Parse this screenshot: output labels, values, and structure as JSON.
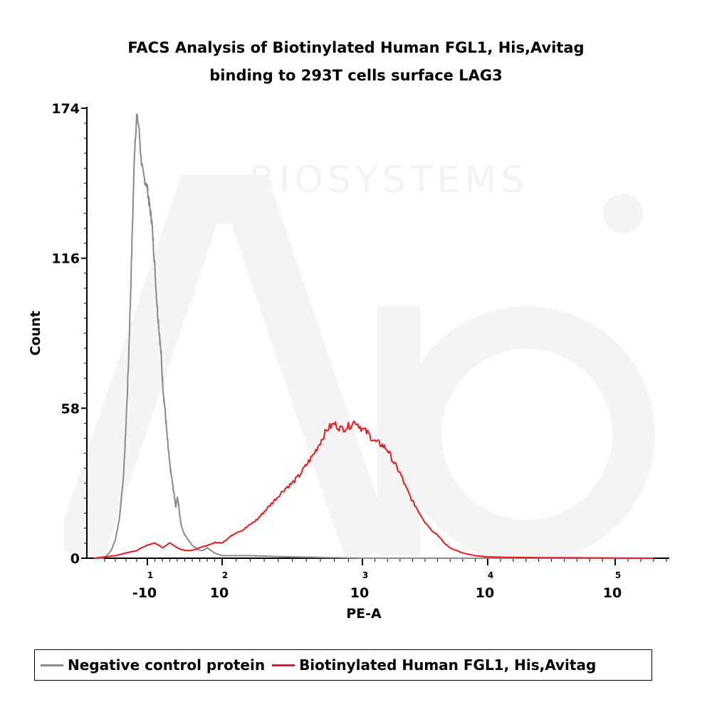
{
  "colors": {
    "negative": "#8a8a8a",
    "positive": "#e8181c",
    "axis": "#000000",
    "watermark": "#f4f4f4"
  },
  "chart_data": {
    "type": "line",
    "title_line1": "FACS Analysis of Biotinylated Human FGL1, His,Avitag",
    "title_line2": "binding to 293T cells surface LAG3",
    "xlabel": "PE-A",
    "ylabel": "Count",
    "ylim": [
      0,
      174
    ],
    "y_ticks": [
      {
        "value": 0,
        "label": "0"
      },
      {
        "value": 58,
        "label": "58"
      },
      {
        "value": 116,
        "label": "116"
      },
      {
        "value": 174,
        "label": "174"
      }
    ],
    "x_ticks": [
      {
        "base": "-10",
        "exp": "1"
      },
      {
        "base": "10",
        "exp": "2"
      },
      {
        "base": "10",
        "exp": "3"
      },
      {
        "base": "10",
        "exp": "4"
      },
      {
        "base": "10",
        "exp": "5"
      }
    ],
    "x_scale": "biexponential (logicle)",
    "grid": false,
    "legend_position": "bottom",
    "series": [
      {
        "name": "Negative control protein",
        "color": "#8a8a8a",
        "points": [
          [
            0.5,
            0
          ],
          [
            0.58,
            0
          ],
          [
            0.62,
            1
          ],
          [
            0.66,
            3
          ],
          [
            0.7,
            7
          ],
          [
            0.74,
            16
          ],
          [
            0.78,
            34
          ],
          [
            0.8,
            52
          ],
          [
            0.82,
            72
          ],
          [
            0.84,
            98
          ],
          [
            0.86,
            128
          ],
          [
            0.88,
            158
          ],
          [
            0.9,
            171
          ],
          [
            0.92,
            167
          ],
          [
            0.94,
            155
          ],
          [
            0.96,
            148
          ],
          [
            0.98,
            146
          ],
          [
            1.0,
            143
          ],
          [
            1.02,
            138
          ],
          [
            1.04,
            134
          ],
          [
            1.06,
            130
          ],
          [
            1.08,
            121
          ],
          [
            1.1,
            112
          ],
          [
            1.12,
            102
          ],
          [
            1.14,
            94
          ],
          [
            1.16,
            87
          ],
          [
            1.18,
            80
          ],
          [
            1.2,
            70
          ],
          [
            1.22,
            62
          ],
          [
            1.24,
            56
          ],
          [
            1.26,
            48
          ],
          [
            1.28,
            42
          ],
          [
            1.3,
            36
          ],
          [
            1.32,
            32
          ],
          [
            1.34,
            28
          ],
          [
            1.36,
            24
          ],
          [
            1.38,
            20
          ],
          [
            1.4,
            24
          ],
          [
            1.42,
            20
          ],
          [
            1.44,
            15
          ],
          [
            1.46,
            12
          ],
          [
            1.5,
            9
          ],
          [
            1.55,
            7
          ],
          [
            1.6,
            5
          ],
          [
            1.65,
            4
          ],
          [
            1.7,
            3
          ],
          [
            1.75,
            3
          ],
          [
            1.8,
            4
          ],
          [
            1.85,
            3
          ],
          [
            1.9,
            2
          ],
          [
            2.0,
            1
          ],
          [
            2.2,
            1
          ],
          [
            2.5,
            0.5
          ],
          [
            3.0,
            0
          ],
          [
            5.3,
            0
          ]
        ]
      },
      {
        "name": "Biotinylated Human FGL1, His,Avitag",
        "color": "#e8181c",
        "points": [
          [
            0.5,
            0
          ],
          [
            0.6,
            0.5
          ],
          [
            0.7,
            1
          ],
          [
            0.8,
            2
          ],
          [
            0.9,
            3
          ],
          [
            1.0,
            5
          ],
          [
            1.1,
            6
          ],
          [
            1.2,
            4
          ],
          [
            1.3,
            6
          ],
          [
            1.4,
            4
          ],
          [
            1.5,
            3
          ],
          [
            1.6,
            3
          ],
          [
            1.7,
            4
          ],
          [
            1.8,
            5
          ],
          [
            1.9,
            6
          ],
          [
            2.0,
            6
          ],
          [
            2.05,
            8
          ],
          [
            2.1,
            10
          ],
          [
            2.15,
            11
          ],
          [
            2.2,
            13
          ],
          [
            2.25,
            15
          ],
          [
            2.3,
            18
          ],
          [
            2.35,
            21
          ],
          [
            2.4,
            24
          ],
          [
            2.45,
            27
          ],
          [
            2.5,
            29
          ],
          [
            2.55,
            32
          ],
          [
            2.6,
            36
          ],
          [
            2.65,
            40
          ],
          [
            2.7,
            45
          ],
          [
            2.75,
            50
          ],
          [
            2.8,
            52
          ],
          [
            2.85,
            50
          ],
          [
            2.9,
            51
          ],
          [
            2.95,
            53
          ],
          [
            3.0,
            50
          ],
          [
            3.05,
            48
          ],
          [
            3.1,
            45
          ],
          [
            3.15,
            44
          ],
          [
            3.2,
            42
          ],
          [
            3.25,
            37
          ],
          [
            3.3,
            33
          ],
          [
            3.35,
            27
          ],
          [
            3.4,
            22
          ],
          [
            3.45,
            18
          ],
          [
            3.5,
            14
          ],
          [
            3.55,
            11
          ],
          [
            3.6,
            9
          ],
          [
            3.65,
            6
          ],
          [
            3.7,
            4
          ],
          [
            3.8,
            2
          ],
          [
            3.9,
            1
          ],
          [
            4.0,
            0.5
          ],
          [
            4.2,
            0.3
          ],
          [
            4.5,
            0.2
          ],
          [
            5.3,
            0
          ]
        ]
      }
    ]
  }
}
